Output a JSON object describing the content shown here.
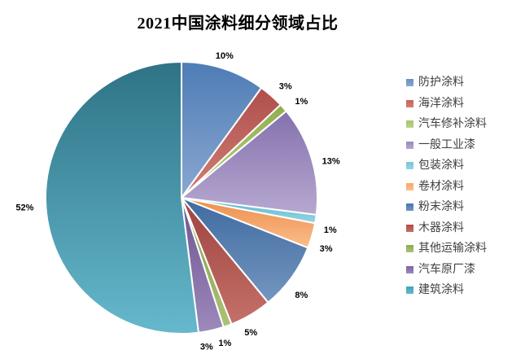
{
  "chart_data": {
    "type": "pie",
    "title": "2021中国涂料细分领域占比",
    "legend_position": "right",
    "start_angle_deg": 0,
    "direction": "clockwise",
    "label_style": "percent-outside",
    "background_color": "#ffffff",
    "slice_border_color": "#ffffff",
    "total": 100,
    "slices": [
      {
        "label": "防护涂料",
        "value": 10,
        "percent_label": "10%",
        "color": "#6b8fc0",
        "color_dark": "#4e7cb5",
        "color_light": "#8aa8d2"
      },
      {
        "label": "海洋涂料",
        "value": 3,
        "percent_label": "3%",
        "color": "#c4615c",
        "color_dark": "#b04e4b",
        "color_light": "#d08078"
      },
      {
        "label": "汽车修补涂料",
        "value": 1,
        "percent_label": "1%",
        "color": "#a9c36f",
        "color_dark": "#8fae4e",
        "color_light": "#bcd28a"
      },
      {
        "label": "一般工业漆",
        "value": 13,
        "percent_label": "13%",
        "color": "#9c86bd",
        "color_dark": "#8471ad",
        "color_light": "#b7a8d1"
      },
      {
        "label": "包装涂料",
        "value": 1,
        "percent_label": "1%",
        "color": "#73c6da",
        "color_dark": "#55b3cc",
        "color_light": "#99d5e4"
      },
      {
        "label": "卷材涂料",
        "value": 3,
        "percent_label": "3%",
        "color": "#f8a869",
        "color_dark": "#ec8e4a",
        "color_light": "#fbbd8b"
      },
      {
        "label": "粉末涂料",
        "value": 8,
        "percent_label": "8%",
        "color": "#4776ab",
        "color_dark": "#3f6ba0",
        "color_light": "#7495c0"
      },
      {
        "label": "木器涂料",
        "value": 5,
        "percent_label": "5%",
        "color": "#b34a46",
        "color_dark": "#9e423f",
        "color_light": "#c47169"
      },
      {
        "label": "其他运输涂料",
        "value": 1,
        "percent_label": "1%",
        "color": "#8cab52",
        "color_dark": "#7e9a43",
        "color_light": "#adc276"
      },
      {
        "label": "汽车原厂漆",
        "value": 3,
        "percent_label": "3%",
        "color": "#7e61a5",
        "color_dark": "#6c5491",
        "color_light": "#9d89ba"
      },
      {
        "label": "建筑涂料",
        "value": 52,
        "percent_label": "52%",
        "color": "#43a2ba",
        "color_dark": "#2e7386",
        "color_light": "#66b8cc"
      }
    ]
  }
}
